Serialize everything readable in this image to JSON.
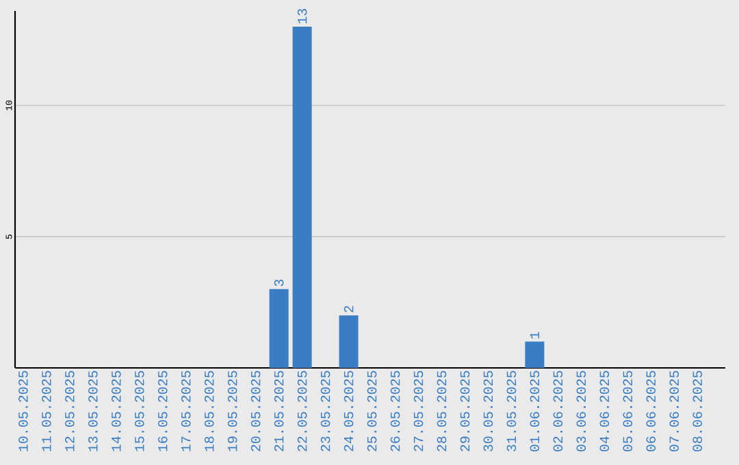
{
  "chart_data": {
    "type": "bar",
    "categories": [
      "10.05.2025",
      "11.05.2025",
      "12.05.2025",
      "13.05.2025",
      "14.05.2025",
      "15.05.2025",
      "16.05.2025",
      "17.05.2025",
      "18.05.2025",
      "19.05.2025",
      "20.05.2025",
      "21.05.2025",
      "22.05.2025",
      "23.05.2025",
      "24.05.2025",
      "25.05.2025",
      "26.05.2025",
      "27.05.2025",
      "28.05.2025",
      "29.05.2025",
      "30.05.2025",
      "31.05.2025",
      "01.06.2025",
      "02.06.2025",
      "03.06.2025",
      "04.06.2025",
      "05.06.2025",
      "06.06.2025",
      "07.06.2025",
      "08.06.2025"
    ],
    "values": [
      0,
      0,
      0,
      0,
      0,
      0,
      0,
      0,
      0,
      0,
      0,
      3,
      13,
      0,
      2,
      0,
      0,
      0,
      0,
      0,
      0,
      0,
      1,
      0,
      0,
      0,
      0,
      0,
      0,
      0
    ],
    "value_labels": [
      null,
      null,
      null,
      null,
      null,
      null,
      null,
      null,
      null,
      null,
      null,
      "3",
      "13",
      null,
      "2",
      null,
      null,
      null,
      null,
      null,
      null,
      null,
      "1",
      null,
      null,
      null,
      null,
      null,
      null,
      null
    ],
    "color": "#3a7dc2",
    "ylim": [
      0,
      13.6
    ],
    "yticks": [
      5,
      10
    ],
    "grid": "y"
  }
}
